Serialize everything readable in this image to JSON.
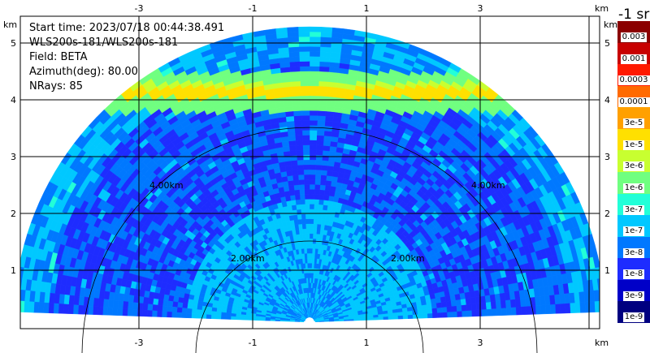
{
  "info": {
    "start_time": "Start time: 2023/07/18 00:44:38.491",
    "radar": "WLS200s-181/WLS200s-181",
    "field": "Field: BETA",
    "azimuth": "Azimuth(deg): 80.00",
    "nrays": "NRays: 85"
  },
  "axes": {
    "x_ticks": [
      "-3",
      "-1",
      "1",
      "3"
    ],
    "y_ticks": [
      "1",
      "2",
      "3",
      "4",
      "5"
    ],
    "unit": "km"
  },
  "rings": {
    "inner_label": "2.00km",
    "outer_label": "4.00km"
  },
  "colorbar": {
    "units_label": "-1 sr",
    "levels": [
      {
        "label": "0.003",
        "color": "#8b0000"
      },
      {
        "label": "0.001",
        "color": "#c80000"
      },
      {
        "label": "0.0003",
        "color": "#ff1a00"
      },
      {
        "label": "0.0001",
        "color": "#ff6a00"
      },
      {
        "label": "3e-5",
        "color": "#ffa000"
      },
      {
        "label": "1e-5",
        "color": "#ffe000"
      },
      {
        "label": "3e-6",
        "color": "#c8ff30"
      },
      {
        "label": "1e-6",
        "color": "#70ff80"
      },
      {
        "label": "3e-7",
        "color": "#22ffd8"
      },
      {
        "label": "1e-7",
        "color": "#00c8ff"
      },
      {
        "label": "3e-8",
        "color": "#0078ff"
      },
      {
        "label": "1e-8",
        "color": "#1e2cff"
      },
      {
        "label": "3e-9",
        "color": "#0000c8"
      },
      {
        "label": "1e-9",
        "color": "#000080"
      }
    ]
  }
}
